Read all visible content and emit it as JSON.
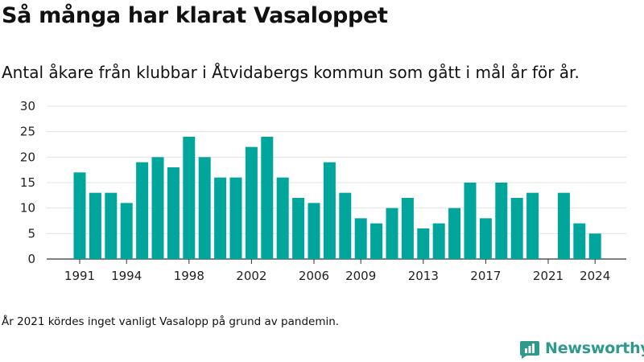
{
  "title": "Så många har klarat Vasaloppet",
  "subtitle": "Antal åkare från klubbar i Åtvidabergs kommun som gått i mål år för år.",
  "note": "År 2021 kördes inget vanligt Vasalopp på grund av pandemin.",
  "brand": {
    "name": "Newsworthy",
    "icon": "newsworthy-logo-icon",
    "color": "#2d9a8c"
  },
  "chart_data": {
    "type": "bar",
    "title": "Så många har klarat Vasaloppet",
    "xlabel": "",
    "ylabel": "",
    "bar_color": "#00a69c",
    "ylim": [
      0,
      30
    ],
    "yticks": [
      0,
      5,
      10,
      15,
      20,
      25,
      30
    ],
    "xtick_labels": [
      "1991",
      "1994",
      "1998",
      "2002",
      "2006",
      "2009",
      "2013",
      "2017",
      "2021",
      "2024"
    ],
    "grid": true,
    "categories": [
      "1991",
      "1992",
      "1993",
      "1994",
      "1995",
      "1996",
      "1997",
      "1998",
      "1999",
      "2000",
      "2001",
      "2002",
      "2003",
      "2004",
      "2005",
      "2006",
      "2007",
      "2008",
      "2009",
      "2010",
      "2011",
      "2012",
      "2013",
      "2014",
      "2015",
      "2016",
      "2017",
      "2018",
      "2019",
      "2020",
      "2021",
      "2022",
      "2023",
      "2024"
    ],
    "values": [
      17,
      13,
      13,
      11,
      19,
      20,
      18,
      24,
      20,
      16,
      16,
      22,
      24,
      16,
      12,
      11,
      19,
      13,
      8,
      7,
      10,
      12,
      6,
      7,
      10,
      15,
      8,
      15,
      12,
      13,
      0,
      13,
      7,
      5
    ]
  }
}
